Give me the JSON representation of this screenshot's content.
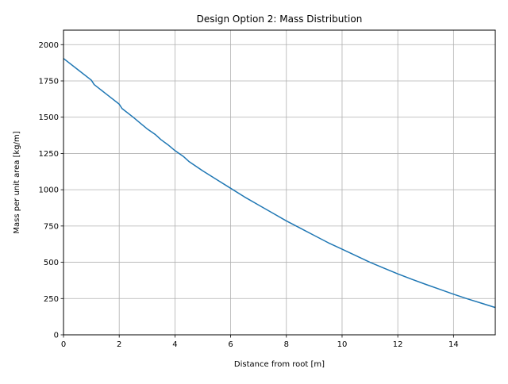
{
  "chart_data": {
    "type": "line",
    "title": "Design Option 2: Mass Distribution",
    "xlabel": "Distance from root [m]",
    "ylabel": "Mass per unit area [kg/m]",
    "xlim": [
      0,
      15.5
    ],
    "ylim": [
      0,
      2100
    ],
    "xticks": [
      0,
      2,
      4,
      6,
      8,
      10,
      12,
      14
    ],
    "xtick_labels": [
      "0",
      "2",
      "4",
      "6",
      "8",
      "10",
      "12",
      "14"
    ],
    "yticks": [
      0,
      250,
      500,
      750,
      1000,
      1250,
      1500,
      1750,
      2000
    ],
    "ytick_labels": [
      "0",
      "250",
      "500",
      "750",
      "1000",
      "1250",
      "1500",
      "1750",
      "2000"
    ],
    "grid": true,
    "series": [
      {
        "color": "#1f77b4",
        "x": [
          0,
          0.5,
          1.0,
          1.1,
          1.5,
          2.0,
          2.1,
          2.5,
          2.75,
          3.0,
          3.3,
          3.5,
          3.75,
          4.0,
          4.3,
          4.5,
          5.0,
          5.5,
          6.0,
          6.5,
          7.0,
          7.5,
          8.0,
          8.5,
          9.0,
          9.5,
          10.0,
          10.5,
          11.0,
          11.5,
          12.0,
          12.5,
          13.0,
          13.5,
          14.0,
          14.5,
          15.0,
          15.5
        ],
        "y": [
          1905,
          1830,
          1755,
          1725,
          1665,
          1590,
          1560,
          1500,
          1460,
          1420,
          1380,
          1345,
          1310,
          1270,
          1230,
          1195,
          1130,
          1070,
          1010,
          950,
          895,
          840,
          785,
          735,
          685,
          635,
          590,
          545,
          500,
          460,
          420,
          383,
          348,
          314,
          280,
          248,
          218,
          188
        ]
      }
    ]
  },
  "colors": {
    "line": "#1f77b4",
    "grid": "#b0b0b0",
    "axes": "#000000",
    "background": "#ffffff"
  }
}
